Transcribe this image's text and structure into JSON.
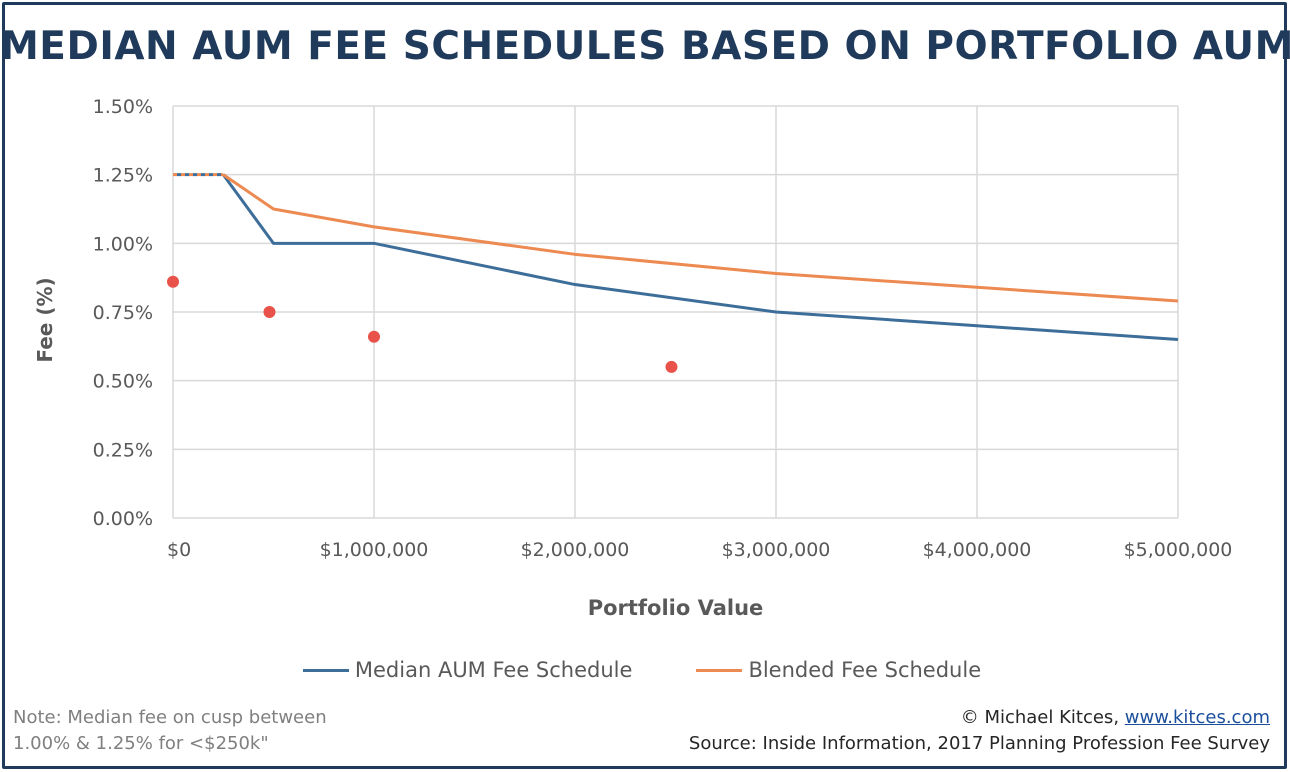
{
  "chart_data": {
    "type": "line",
    "title": "MEDIAN AUM FEE SCHEDULES BASED ON PORTFOLIO AUM",
    "xlabel": "Portfolio Value",
    "ylabel": "Fee (%)",
    "xlim": [
      0,
      5000000
    ],
    "ylim": [
      0,
      1.5
    ],
    "x_ticks": [
      "$0",
      "$1,000,000",
      "$2,000,000",
      "$3,000,000",
      "$4,000,000",
      "$5,000,000"
    ],
    "y_ticks": [
      "0.00%",
      "0.25%",
      "0.50%",
      "0.75%",
      "1.00%",
      "1.25%",
      "1.50%"
    ],
    "grid": true,
    "legend_position": "bottom",
    "series": [
      {
        "name": "Median AUM Fee Schedule",
        "color": "#3d6d99",
        "points": [
          [
            0,
            1.25
          ],
          [
            250000,
            1.25
          ],
          [
            500000,
            1.0
          ],
          [
            1000000,
            1.0
          ],
          [
            2000000,
            0.85
          ],
          [
            3000000,
            0.75
          ],
          [
            4000000,
            0.7
          ],
          [
            5000000,
            0.65
          ]
        ]
      },
      {
        "name": "Blended Fee Schedule",
        "color": "#ed8a51",
        "points": [
          [
            0,
            1.25
          ],
          [
            250000,
            1.25
          ],
          [
            500000,
            1.125
          ],
          [
            1000000,
            1.06
          ],
          [
            2000000,
            0.96
          ],
          [
            3000000,
            0.89
          ],
          [
            4000000,
            0.84
          ],
          [
            5000000,
            0.79
          ]
        ]
      }
    ],
    "cusp_segment": {
      "points": [
        [
          0,
          1.25
        ],
        [
          250000,
          1.25
        ]
      ],
      "colors": [
        "#3d6d99",
        "#ed8a51"
      ]
    },
    "markers": {
      "color": "#e8524a",
      "points": [
        [
          0,
          0.86
        ],
        [
          480000,
          0.75
        ],
        [
          1000000,
          0.66
        ],
        [
          2480000,
          0.55
        ]
      ]
    }
  },
  "legend": {
    "median_label": "Median AUM Fee Schedule",
    "median_color": "#3d6d99",
    "blended_label": "Blended Fee Schedule",
    "blended_color": "#ed8a51"
  },
  "footer": {
    "note_line1": "Note: Median fee on cusp between",
    "note_line2": "1.00% & 1.25% for <$250k\"",
    "credit_prefix": "© Michael Kitces, ",
    "credit_link": "www.kitces.com",
    "source": "Source: Inside Information, 2017 Planning Profession Fee Survey"
  }
}
